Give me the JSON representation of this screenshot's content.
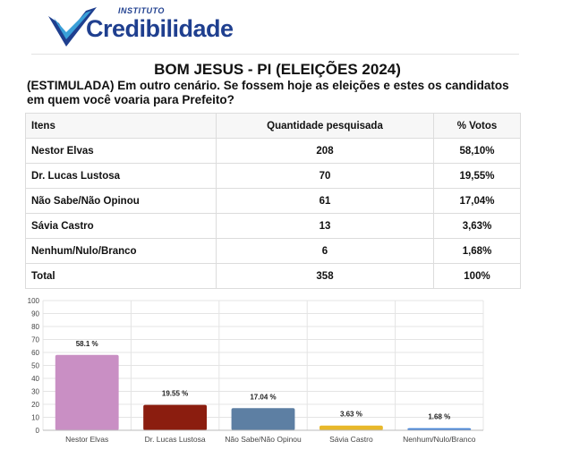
{
  "header": {
    "logo_small": "INSTITUTO",
    "logo_main": "Credibilidade",
    "title": "BOM JESUS - PI (ELEIÇÕES 2024)",
    "subtitle": "(ESTIMULADA) Em outro cenário. Se fossem hoje as eleições e estes os candidatos em quem você voaria para Prefeito?"
  },
  "colors": {
    "logo_blue": "#1f3f8f",
    "logo_cyan": "#3aa0d8"
  },
  "table": {
    "headers": [
      "Itens",
      "Quantidade pesquisada",
      "% Votos"
    ],
    "rows": [
      [
        "Nestor Elvas",
        "208",
        "58,10%"
      ],
      [
        "Dr. Lucas Lustosa",
        "70",
        "19,55%"
      ],
      [
        "Não Sabe/Não Opinou",
        "61",
        "17,04%"
      ],
      [
        "Sávia Castro",
        "13",
        "3,63%"
      ],
      [
        "Nenhum/Nulo/Branco",
        "6",
        "1,68%"
      ],
      [
        "Total",
        "358",
        "100%"
      ]
    ]
  },
  "chart_data": {
    "type": "bar",
    "categories": [
      "Nestor Elvas",
      "Dr. Lucas Lustosa",
      "Não Sabe/Não Opinou",
      "Sávia Castro",
      "Nenhum/Nulo/Branco"
    ],
    "values": [
      58.1,
      19.55,
      17.04,
      3.63,
      1.68
    ],
    "value_labels": [
      "58.1 %",
      "19.55 %",
      "17.04 %",
      "3.63 %",
      "1.68 %"
    ],
    "colors": [
      "#c98fc4",
      "#8b1d0f",
      "#5d7fa3",
      "#e8b82a",
      "#4a86d8"
    ],
    "ylim": [
      0,
      100
    ],
    "yticks": [
      0,
      10,
      20,
      30,
      40,
      50,
      60,
      70,
      80,
      90,
      100
    ],
    "grid": true,
    "legend": "none",
    "title": "",
    "xlabel": "",
    "ylabel": ""
  }
}
